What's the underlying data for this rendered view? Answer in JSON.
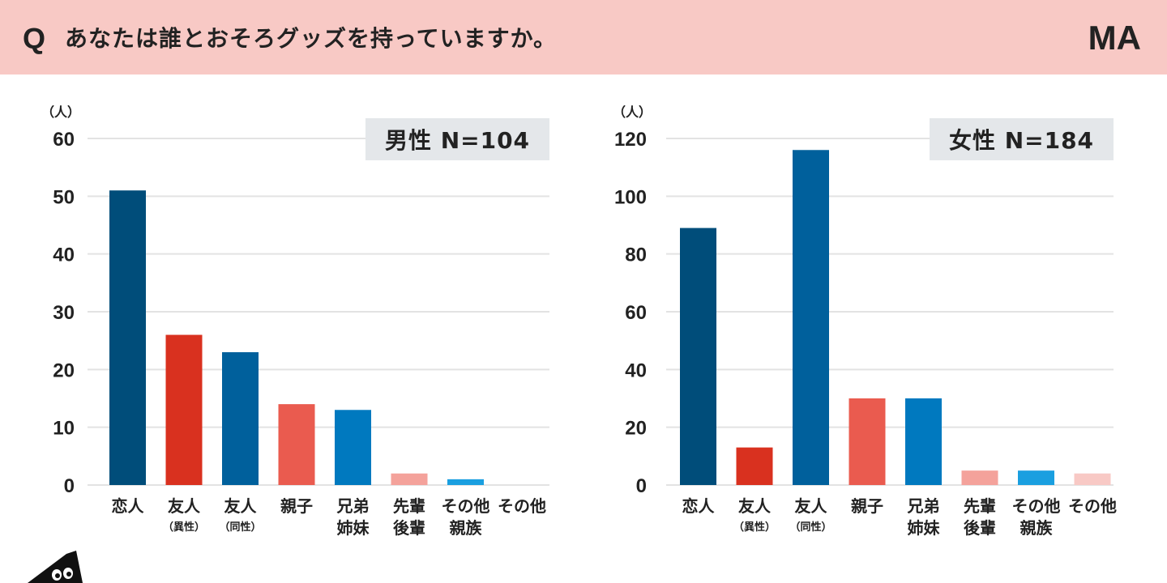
{
  "header": {
    "q_mark": "Q",
    "question": "あなたは誰とおそろグッズを持っていますか。",
    "type_badge": "MA",
    "background": "#f8c9c5"
  },
  "chart_data": [
    {
      "type": "bar",
      "title": "男性 N=104",
      "ylabel": "（人）",
      "ylim": [
        0,
        60
      ],
      "yticks": [
        0,
        10,
        20,
        30,
        40,
        50,
        60
      ],
      "grid": true,
      "categories": [
        {
          "line1": "恋人",
          "line2": ""
        },
        {
          "line1": "友人",
          "line2": "（異性）"
        },
        {
          "line1": "友人",
          "line2": "（同性）"
        },
        {
          "line1": "親子",
          "line2": ""
        },
        {
          "line1": "兄弟",
          "line2": "姉妹"
        },
        {
          "line1": "先輩",
          "line2": "後輩"
        },
        {
          "line1": "その他",
          "line2": "親族"
        },
        {
          "line1": "その他",
          "line2": ""
        }
      ],
      "values": [
        51,
        26,
        23,
        14,
        13,
        2,
        1,
        0
      ],
      "colors": [
        "#004d7a",
        "#d9311f",
        "#00609c",
        "#ea5b4f",
        "#0079bf",
        "#f4a29b",
        "#1a9fe0",
        "#f8c9c5"
      ]
    },
    {
      "type": "bar",
      "title": "女性 N=184",
      "ylabel": "（人）",
      "ylim": [
        0,
        120
      ],
      "yticks": [
        0,
        20,
        40,
        60,
        80,
        100,
        120
      ],
      "grid": true,
      "categories": [
        {
          "line1": "恋人",
          "line2": ""
        },
        {
          "line1": "友人",
          "line2": "（異性）"
        },
        {
          "line1": "友人",
          "line2": "（同性）"
        },
        {
          "line1": "親子",
          "line2": ""
        },
        {
          "line1": "兄弟",
          "line2": "姉妹"
        },
        {
          "line1": "先輩",
          "line2": "後輩"
        },
        {
          "line1": "その他",
          "line2": "親族"
        },
        {
          "line1": "その他",
          "line2": ""
        }
      ],
      "values": [
        89,
        13,
        116,
        30,
        30,
        5,
        5,
        4
      ],
      "colors": [
        "#004d7a",
        "#d9311f",
        "#00609c",
        "#ea5b4f",
        "#0079bf",
        "#f4a29b",
        "#1a9fe0",
        "#f8c9c5"
      ]
    }
  ]
}
